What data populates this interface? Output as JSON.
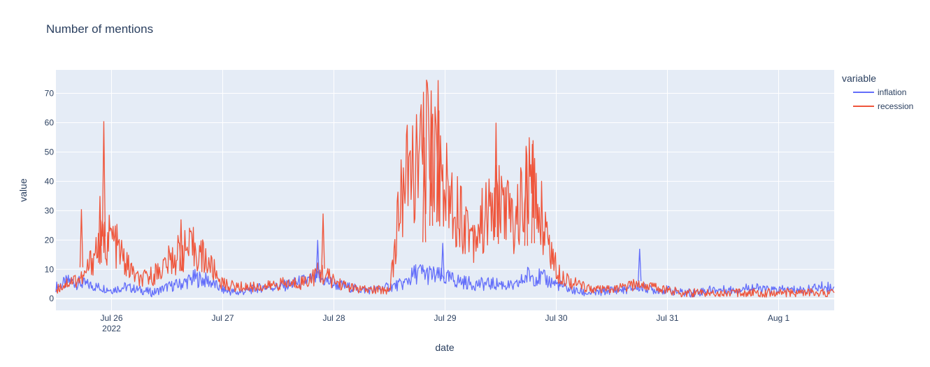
{
  "chart_data": {
    "type": "line",
    "title": "Number of mentions",
    "xlabel": "date",
    "ylabel": "value",
    "legend_title": "variable",
    "legend_placement": "right",
    "grid": true,
    "xlim": [
      "2022-07-25T12:00",
      "2022-08-01T12:00"
    ],
    "ylim": [
      -4,
      78
    ],
    "x_ticks": [
      {
        "date": "2022-07-26T00:00",
        "label": "Jul 26",
        "sublabel": "2022"
      },
      {
        "date": "2022-07-27T00:00",
        "label": "Jul 27",
        "sublabel": ""
      },
      {
        "date": "2022-07-28T00:00",
        "label": "Jul 28",
        "sublabel": ""
      },
      {
        "date": "2022-07-29T00:00",
        "label": "Jul 29",
        "sublabel": ""
      },
      {
        "date": "2022-07-30T00:00",
        "label": "Jul 30",
        "sublabel": ""
      },
      {
        "date": "2022-07-31T00:00",
        "label": "Jul 31",
        "sublabel": ""
      },
      {
        "date": "2022-08-01T00:00",
        "label": "Aug 1",
        "sublabel": ""
      }
    ],
    "y_ticks": [
      0,
      10,
      20,
      30,
      40,
      50,
      60,
      70
    ],
    "series": [
      {
        "name": "inflation",
        "color": "#636efa",
        "x": [
          "2022-07-25T12:00",
          "2022-07-25T15:00",
          "2022-07-25T18:00",
          "2022-07-25T21:00",
          "2022-07-26T00:00",
          "2022-07-26T03:00",
          "2022-07-26T06:00",
          "2022-07-26T09:00",
          "2022-07-26T12:00",
          "2022-07-26T15:00",
          "2022-07-26T18:00",
          "2022-07-26T21:00",
          "2022-07-27T00:00",
          "2022-07-27T03:00",
          "2022-07-27T06:00",
          "2022-07-27T09:00",
          "2022-07-27T12:00",
          "2022-07-27T15:00",
          "2022-07-27T18:00",
          "2022-07-27T21:00",
          "2022-07-28T00:00",
          "2022-07-28T03:00",
          "2022-07-28T06:00",
          "2022-07-28T09:00",
          "2022-07-28T12:00",
          "2022-07-28T15:00",
          "2022-07-28T18:00",
          "2022-07-28T21:00",
          "2022-07-29T00:00",
          "2022-07-29T03:00",
          "2022-07-29T06:00",
          "2022-07-29T09:00",
          "2022-07-29T12:00",
          "2022-07-29T15:00",
          "2022-07-29T18:00",
          "2022-07-29T21:00",
          "2022-07-30T00:00",
          "2022-07-30T03:00",
          "2022-07-30T06:00",
          "2022-07-30T09:00",
          "2022-07-30T12:00",
          "2022-07-30T15:00",
          "2022-07-30T18:00",
          "2022-07-30T21:00",
          "2022-07-31T00:00",
          "2022-07-31T03:00",
          "2022-07-31T06:00",
          "2022-07-31T09:00",
          "2022-07-31T12:00",
          "2022-07-31T15:00",
          "2022-07-31T18:00",
          "2022-07-31T21:00",
          "2022-08-01T00:00",
          "2022-08-01T03:00",
          "2022-08-01T06:00",
          "2022-08-01T09:00",
          "2022-08-01T12:00"
        ],
        "values": [
          4,
          6,
          5,
          4,
          3,
          4,
          3,
          2,
          4,
          5,
          7,
          6,
          3,
          2,
          3,
          4,
          4,
          5,
          6,
          7,
          5,
          4,
          3,
          3,
          4,
          5,
          9,
          8,
          7,
          6,
          5,
          5,
          5,
          4,
          8,
          7,
          5,
          3,
          2,
          2,
          3,
          3,
          4,
          3,
          3,
          2,
          2,
          3,
          3,
          3,
          4,
          3,
          3,
          3,
          3,
          4,
          4
        ]
      },
      {
        "name": "recession",
        "color": "#ef553b",
        "x": [
          "2022-07-25T12:00",
          "2022-07-25T15:00",
          "2022-07-25T18:00",
          "2022-07-25T21:00",
          "2022-07-26T00:00",
          "2022-07-26T03:00",
          "2022-07-26T06:00",
          "2022-07-26T09:00",
          "2022-07-26T12:00",
          "2022-07-26T15:00",
          "2022-07-26T18:00",
          "2022-07-26T21:00",
          "2022-07-27T00:00",
          "2022-07-27T03:00",
          "2022-07-27T06:00",
          "2022-07-27T09:00",
          "2022-07-27T12:00",
          "2022-07-27T15:00",
          "2022-07-27T18:00",
          "2022-07-27T21:00",
          "2022-07-28T00:00",
          "2022-07-28T03:00",
          "2022-07-28T06:00",
          "2022-07-28T09:00",
          "2022-07-28T12:00",
          "2022-07-28T15:00",
          "2022-07-28T18:00",
          "2022-07-28T21:00",
          "2022-07-29T00:00",
          "2022-07-29T03:00",
          "2022-07-29T06:00",
          "2022-07-29T09:00",
          "2022-07-29T12:00",
          "2022-07-29T15:00",
          "2022-07-29T18:00",
          "2022-07-29T21:00",
          "2022-07-30T00:00",
          "2022-07-30T03:00",
          "2022-07-30T06:00",
          "2022-07-30T09:00",
          "2022-07-30T12:00",
          "2022-07-30T15:00",
          "2022-07-30T18:00",
          "2022-07-30T21:00",
          "2022-07-31T00:00",
          "2022-07-31T03:00",
          "2022-07-31T06:00",
          "2022-07-31T09:00",
          "2022-07-31T12:00",
          "2022-07-31T15:00",
          "2022-07-31T18:00",
          "2022-07-31T21:00",
          "2022-08-01T00:00",
          "2022-08-01T03:00",
          "2022-08-01T06:00",
          "2022-08-01T09:00",
          "2022-08-01T12:00"
        ],
        "values": [
          3,
          6,
          7,
          18,
          21,
          12,
          6,
          8,
          12,
          16,
          17,
          12,
          5,
          4,
          4,
          4,
          5,
          5,
          6,
          9,
          6,
          4,
          3,
          3,
          3,
          40,
          45,
          55,
          38,
          30,
          22,
          28,
          34,
          25,
          40,
          28,
          10,
          6,
          4,
          3,
          3,
          4,
          5,
          4,
          3,
          2,
          2,
          2,
          2,
          2,
          2,
          2,
          2,
          2,
          2,
          2,
          2
        ]
      }
    ],
    "annotations": [
      {
        "series": "recession",
        "x": "2022-07-25T22:20",
        "value": 60.5
      },
      {
        "series": "recession",
        "x": "2022-07-25T21:30",
        "value": 35
      },
      {
        "series": "recession",
        "x": "2022-07-25T17:30",
        "value": 30.5
      },
      {
        "series": "recession",
        "x": "2022-07-26T15:00",
        "value": 27
      },
      {
        "series": "recession",
        "x": "2022-07-27T21:40",
        "value": 29
      },
      {
        "series": "recession",
        "x": "2022-07-28T19:30",
        "value": 55
      },
      {
        "series": "recession",
        "x": "2022-07-28T22:30",
        "value": 74.5
      },
      {
        "series": "recession",
        "x": "2022-07-28T21:00",
        "value": 71
      },
      {
        "series": "recession",
        "x": "2022-07-29T11:00",
        "value": 60
      },
      {
        "series": "recession",
        "x": "2022-07-29T17:30",
        "value": 51.5
      },
      {
        "series": "recession",
        "x": "2022-07-29T19:00",
        "value": 54
      },
      {
        "series": "inflation",
        "x": "2022-07-27T20:30",
        "value": 20
      },
      {
        "series": "inflation",
        "x": "2022-07-30T18:00",
        "value": 17
      },
      {
        "series": "inflation",
        "x": "2022-07-28T23:30",
        "value": 19
      }
    ]
  }
}
